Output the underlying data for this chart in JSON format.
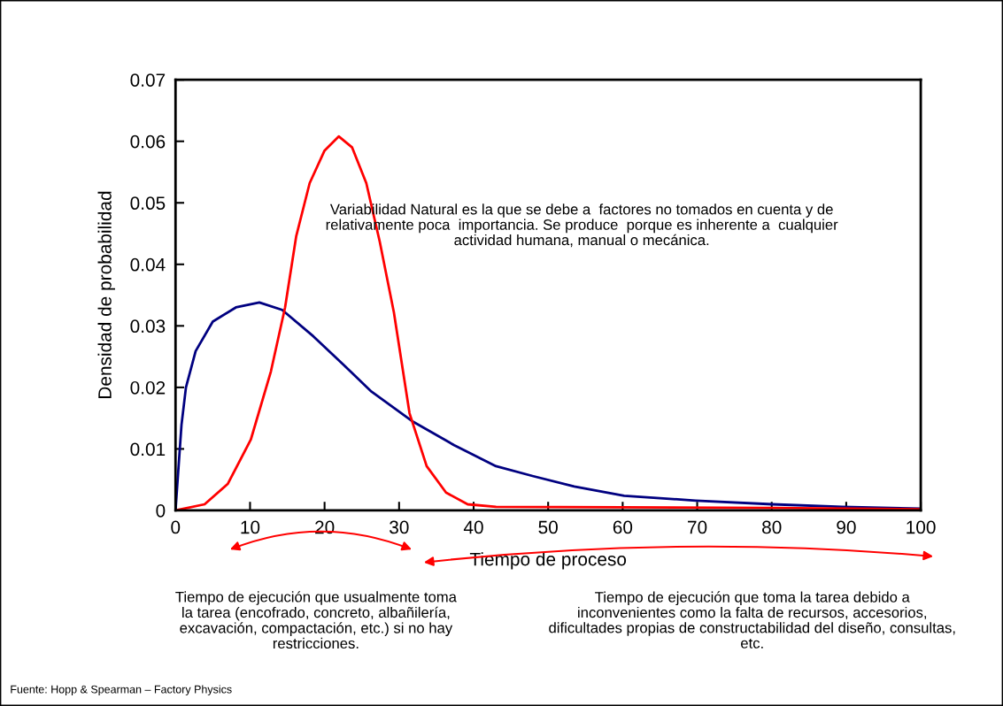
{
  "chart_data": {
    "type": "line",
    "xlabel": "Tiempo de proceso",
    "ylabel": "Densidad de probabilidad",
    "xlim": [
      0,
      100
    ],
    "xticks": [
      0,
      10,
      20,
      30,
      40,
      50,
      60,
      70,
      80,
      90,
      100
    ],
    "ylim": [
      0,
      0.07
    ],
    "yticks": [
      0,
      0.01,
      0.02,
      0.03,
      0.04,
      0.05,
      0.06,
      0.07
    ],
    "grid": false,
    "legend": false,
    "marker": "none",
    "line_style": "solid",
    "series": [
      {
        "color": "#000080",
        "x": [
          0,
          0.8,
          1.4,
          2.7,
          5,
          8.1,
          11.25,
          14.3,
          18.5,
          22.6,
          26.3,
          31.9,
          37.4,
          43.0,
          47.9,
          53.5,
          60.2,
          69.8,
          80.1,
          89.5,
          100
        ],
        "values": [
          0,
          0.0139,
          0.02,
          0.0259,
          0.0307,
          0.033,
          0.0338,
          0.0326,
          0.0283,
          0.0236,
          0.0193,
          0.0144,
          0.0106,
          0.0072,
          0.0056,
          0.0039,
          0.0024,
          0.0016,
          0.001,
          0.0006,
          0.0003
        ]
      },
      {
        "color": "#ff0000",
        "x": [
          0,
          3.9,
          7.0,
          10.1,
          12.8,
          14.7,
          16.2,
          18.0,
          20,
          21.9,
          23.7,
          25.6,
          27.4,
          29.3,
          31.4,
          33.7,
          36.3,
          39.2,
          43,
          60,
          80,
          100
        ],
        "values": [
          0,
          0.001,
          0.0043,
          0.0115,
          0.0226,
          0.033,
          0.0446,
          0.0532,
          0.0585,
          0.0608,
          0.059,
          0.0532,
          0.0437,
          0.0322,
          0.0158,
          0.0072,
          0.0029,
          0.001,
          0.0006,
          0.0005,
          0.0004,
          0.0002
        ]
      }
    ],
    "annotations": [
      "Variabilidad Natural es la que se debe a  factores no tomados en cuenta y de relativamente poca  importancia. Se produce  porque es inherente a  cualquier actividad humana, manual o mecánica.",
      "Tiempo de ejecución que usualmente toma la tarea (encofrado, concreto, albañilería, excavación, compactación, etc.) si no hay restricciones.",
      "Tiempo de ejecución que toma la tarea debido a inconvenientes como la falta de recursos, accesorios, dificultades propias de constructabilidad del diseño, consultas, etc.",
      "Fuente: Hopp & Spearman – Factory Physics"
    ]
  }
}
